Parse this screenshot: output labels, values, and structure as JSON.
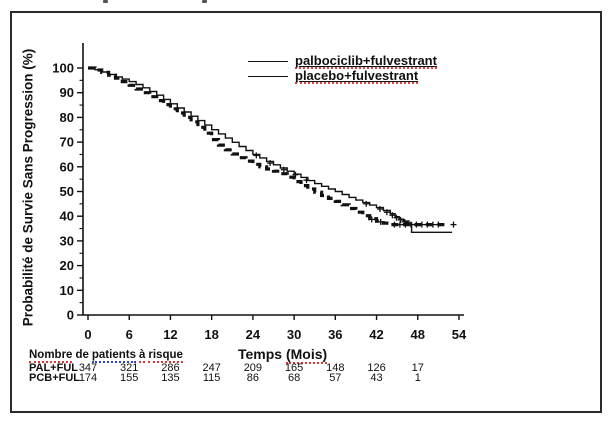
{
  "figure": {
    "background": "#ffffff",
    "border_color": "#2b2b2b",
    "ink_color": "#111111",
    "misspell_red": "#e03535",
    "misspell_blue": "#3344cc"
  },
  "legend": {
    "position": "top-right",
    "items": [
      {
        "label": "palbociclib+fulvestrant",
        "line_style": "thin-solid"
      },
      {
        "label": "placebo+fulvestrant",
        "line_style": "thick-dashed"
      }
    ]
  },
  "chart_data": {
    "type": "line",
    "subtype": "kaplan-meier-step",
    "title": "",
    "xlabel": "Temps (Mois)",
    "xlabel_parts": {
      "plain": "Temps ",
      "misspell_underlined": "(Mois)"
    },
    "ylabel": "Probabilité de Survie Sans Progression (%)",
    "xlim": [
      0,
      54
    ],
    "ylim": [
      0,
      100
    ],
    "x_ticks": [
      0,
      6,
      12,
      18,
      24,
      30,
      36,
      42,
      48,
      54
    ],
    "y_ticks": [
      0,
      10,
      20,
      30,
      40,
      50,
      60,
      70,
      80,
      90,
      100
    ],
    "grid": false,
    "series": [
      {
        "name": "palbociclib+fulvestrant",
        "style": {
          "stroke": "#111111",
          "width": 1.4,
          "dash": null
        },
        "points": [
          [
            0,
            100
          ],
          [
            1,
            99.3
          ],
          [
            2,
            98.4
          ],
          [
            3,
            97.4
          ],
          [
            4,
            96.4
          ],
          [
            5,
            95.5
          ],
          [
            6,
            94.5
          ],
          [
            7,
            93.3
          ],
          [
            8,
            92
          ],
          [
            9,
            90.5
          ],
          [
            10,
            89
          ],
          [
            11,
            87.3
          ],
          [
            12,
            85.5
          ],
          [
            13,
            83.8
          ],
          [
            14,
            82.2
          ],
          [
            15,
            80.5
          ],
          [
            16,
            78.7
          ],
          [
            17,
            76.9
          ],
          [
            18,
            75
          ],
          [
            19,
            73.3
          ],
          [
            20,
            71.6
          ],
          [
            21,
            69.9
          ],
          [
            22,
            68.2
          ],
          [
            23,
            66.6
          ],
          [
            24,
            65
          ],
          [
            25,
            63.6
          ],
          [
            26,
            62.2
          ],
          [
            27,
            60.8
          ],
          [
            28,
            59.5
          ],
          [
            29,
            58.2
          ],
          [
            30,
            57
          ],
          [
            31,
            55.7
          ],
          [
            32,
            54.4
          ],
          [
            33,
            53.2
          ],
          [
            34,
            52.1
          ],
          [
            35,
            51
          ],
          [
            36,
            50
          ],
          [
            37,
            48.8
          ],
          [
            38,
            47.6
          ],
          [
            39,
            46.5
          ],
          [
            40,
            45.5
          ],
          [
            41,
            44.5
          ],
          [
            42,
            43.5
          ],
          [
            43,
            42.3
          ],
          [
            44,
            41
          ],
          [
            44.7,
            39.8
          ],
          [
            45.3,
            38.8
          ],
          [
            45.9,
            38
          ],
          [
            46.5,
            37.3
          ],
          [
            47.1,
            33.5
          ],
          [
            53,
            33.5
          ]
        ],
        "censor_marks": [
          [
            24.5,
            64.6
          ],
          [
            26.5,
            61.5
          ],
          [
            28.5,
            58.8
          ],
          [
            30.2,
            56.8
          ],
          [
            31.8,
            54.6
          ],
          [
            40.5,
            45
          ],
          [
            42.5,
            42.9
          ],
          [
            43.5,
            41.6
          ],
          [
            44.3,
            40.4
          ],
          [
            44.9,
            39.4
          ],
          [
            45.5,
            38.5
          ],
          [
            46.1,
            37.7
          ],
          [
            46.7,
            37.2
          ]
        ]
      },
      {
        "name": "placebo+fulvestrant",
        "style": {
          "stroke": "#111111",
          "width": 3.2,
          "dash": "7 4.5"
        },
        "points": [
          [
            0,
            100
          ],
          [
            1,
            99.2
          ],
          [
            2,
            98.2
          ],
          [
            3,
            97.1
          ],
          [
            4,
            95.9
          ],
          [
            5,
            94.5
          ],
          [
            6,
            93
          ],
          [
            7,
            91.5
          ],
          [
            8,
            90
          ],
          [
            9,
            88.4
          ],
          [
            10,
            86.8
          ],
          [
            11,
            85.2
          ],
          [
            12,
            83.5
          ],
          [
            13,
            81.8
          ],
          [
            14,
            80
          ],
          [
            15,
            78.2
          ],
          [
            16,
            76
          ],
          [
            17,
            73.6
          ],
          [
            18,
            71
          ],
          [
            19,
            68.8
          ],
          [
            20,
            66.9
          ],
          [
            21,
            65.2
          ],
          [
            22,
            63.7
          ],
          [
            23,
            62.3
          ],
          [
            24,
            61
          ],
          [
            25,
            60
          ],
          [
            26,
            59.1
          ],
          [
            27,
            58.2
          ],
          [
            28,
            57.2
          ],
          [
            29,
            55.8
          ],
          [
            30,
            54
          ],
          [
            31,
            52.4
          ],
          [
            32,
            51
          ],
          [
            33,
            49.7
          ],
          [
            34,
            48.4
          ],
          [
            35,
            47.2
          ],
          [
            36,
            46
          ],
          [
            37,
            44.6
          ],
          [
            38,
            43.1
          ],
          [
            39,
            41.6
          ],
          [
            40,
            40.2
          ],
          [
            41,
            39
          ],
          [
            42,
            38
          ],
          [
            43,
            37.2
          ],
          [
            44,
            36.6
          ],
          [
            52,
            36.6
          ]
        ],
        "censor_marks": [
          [
            41.3,
            38.7
          ],
          [
            42.6,
            37.7
          ],
          [
            44.6,
            36.6
          ],
          [
            45.4,
            36.6
          ],
          [
            46.2,
            36.6
          ],
          [
            47,
            36.6
          ],
          [
            47.8,
            36.6
          ],
          [
            48.6,
            36.6
          ],
          [
            49.4,
            36.6
          ],
          [
            50.2,
            36.6
          ],
          [
            51,
            36.6
          ],
          [
            53.2,
            36.6
          ]
        ]
      }
    ]
  },
  "risk_table": {
    "title": "Nombre de patients à risque",
    "title_words": [
      {
        "t": "Nombre",
        "u": "red"
      },
      {
        "t": "de",
        "u": null
      },
      {
        "t": "patients",
        "u": "blue"
      },
      {
        "t": "à",
        "u": "red"
      },
      {
        "t": "risque",
        "u": "red"
      }
    ],
    "columns_months": [
      0,
      6,
      12,
      18,
      24,
      30,
      36,
      42,
      48
    ],
    "rows": [
      {
        "label": "PAL+FUL",
        "values": [
          "347",
          "321",
          "286",
          "247",
          "209",
          "165",
          "148",
          "126",
          "17"
        ]
      },
      {
        "label": "PCB+FUL",
        "values": [
          "174",
          "155",
          "135",
          "115",
          "86",
          "68",
          "57",
          "43",
          "1"
        ]
      }
    ]
  }
}
